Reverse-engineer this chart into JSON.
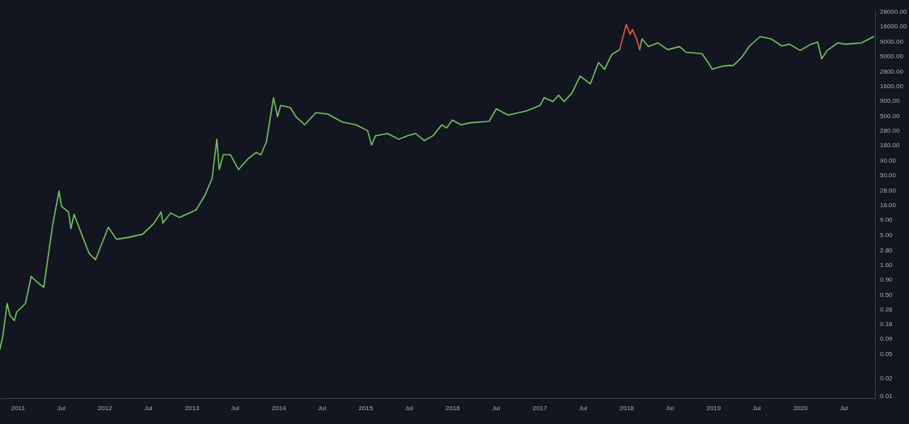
{
  "chart_data": {
    "type": "line",
    "log": "y",
    "grid": false,
    "marker": "none",
    "line_style": "solid",
    "xlim": [
      "2010-10-19",
      "2020-11-11"
    ],
    "ylim": [
      0.009,
      30000
    ],
    "xticks": [
      {
        "value": "2011-01-01",
        "label": "2011"
      },
      {
        "value": "2011-07-01",
        "label": "Jul"
      },
      {
        "value": "2012-01-01",
        "label": "2012"
      },
      {
        "value": "2012-07-01",
        "label": "Jul"
      },
      {
        "value": "2013-01-01",
        "label": "2013"
      },
      {
        "value": "2013-07-01",
        "label": "Jul"
      },
      {
        "value": "2014-01-01",
        "label": "2014"
      },
      {
        "value": "2014-07-01",
        "label": "Jul"
      },
      {
        "value": "2015-01-01",
        "label": "2015"
      },
      {
        "value": "2015-07-01",
        "label": "Jul"
      },
      {
        "value": "2016-01-01",
        "label": "2016"
      },
      {
        "value": "2016-07-01",
        "label": "Jul"
      },
      {
        "value": "2017-01-01",
        "label": "2017"
      },
      {
        "value": "2017-07-01",
        "label": "Jul"
      },
      {
        "value": "2018-01-01",
        "label": "2018"
      },
      {
        "value": "2018-07-01",
        "label": "Jul"
      },
      {
        "value": "2019-01-01",
        "label": "2019"
      },
      {
        "value": "2019-07-01",
        "label": "Jul"
      },
      {
        "value": "2020-01-01",
        "label": "2020"
      },
      {
        "value": "2020-07-01",
        "label": "Jul"
      }
    ],
    "yticks": [
      0.01,
      0.02,
      0.05,
      0.09,
      0.16,
      0.28,
      {
        "value": 0.5,
        "label": "0.50"
      },
      {
        "value": 0.9,
        "label": "0.90"
      },
      {
        "value": 1.6,
        "label": "1.60"
      },
      {
        "value": 2.8,
        "label": "2.80"
      },
      {
        "value": 5,
        "label": "5.00"
      },
      {
        "value": 9,
        "label": "9.00"
      },
      {
        "value": 16,
        "label": "16.00"
      },
      {
        "value": 28,
        "label": "28.00"
      },
      {
        "value": 50,
        "label": "50.00"
      },
      {
        "value": 90,
        "label": "90.00"
      },
      {
        "value": 160,
        "label": "160.00"
      },
      {
        "value": 280,
        "label": "280.00"
      },
      {
        "value": 500,
        "label": "500.00"
      },
      {
        "value": 900,
        "label": "900.00"
      },
      {
        "value": 1600,
        "label": "1600.00"
      },
      {
        "value": 2800,
        "label": "2800.00"
      },
      {
        "value": 5000,
        "label": "5000.00"
      },
      {
        "value": 9000,
        "label": "9000.00"
      },
      {
        "value": 16000,
        "label": "16000.00"
      },
      {
        "value": 28000,
        "label": "28000.00"
      }
    ],
    "series": [
      {
        "color": "#72c05f",
        "x": [
          "2010-10-19",
          "2010-10-31",
          "2010-11-18",
          "2010-11-30",
          "2010-12-18",
          "2010-12-28",
          "2011-02-03",
          "2011-02-27",
          "2011-03-22",
          "2011-04-21",
          "2011-05-11",
          "2011-05-28",
          "2011-06-24",
          "2011-07-04",
          "2011-08-03",
          "2011-08-13",
          "2011-08-26",
          "2011-10-02",
          "2011-10-29",
          "2011-11-24",
          "2011-12-11",
          "2012-01-17",
          "2012-02-20",
          "2012-04-10",
          "2012-06-10",
          "2012-07-27",
          "2012-08-26",
          "2012-09-02",
          "2012-10-05",
          "2012-11-11",
          "2013-01-20",
          "2013-02-26",
          "2013-03-28",
          "2013-04-17",
          "2013-04-27",
          "2013-05-14",
          "2013-06-13",
          "2013-07-17",
          "2013-08-26",
          "2013-09-29",
          "2013-10-19",
          "2013-11-11",
          "2013-12-11",
          "2013-12-28",
          "2014-01-10",
          "2014-02-20",
          "2014-03-15",
          "2014-04-21",
          "2014-06-07",
          "2014-07-27",
          "2014-09-26",
          "2014-11-22",
          "2015-01-10",
          "2015-01-27",
          "2015-02-13",
          "2015-04-04",
          "2015-05-21",
          "2015-06-27",
          "2015-07-31",
          "2015-09-06",
          "2015-10-12",
          "2015-11-18",
          "2015-12-08",
          "2016-01-01",
          "2016-02-07",
          "2016-03-18",
          "2016-06-04",
          "2016-07-04",
          "2016-08-23",
          "2016-11-08",
          "2017-01-04",
          "2017-01-21",
          "2017-02-27",
          "2017-03-22",
          "2017-04-15",
          "2017-05-18",
          "2017-06-21",
          "2017-08-03",
          "2017-09-06",
          "2017-10-02",
          "2017-11-01",
          "2017-12-04",
          null,
          "2018-02-26",
          "2018-03-08",
          "2018-04-04",
          "2018-05-14",
          "2018-06-24",
          "2018-08-13",
          "2018-09-09",
          "2018-11-15",
          "2018-12-11",
          "2018-12-28",
          "2019-02-13",
          "2019-03-28",
          "2019-04-30",
          "2019-06-03",
          "2019-07-17",
          "2019-09-02",
          "2019-10-16",
          "2019-11-18",
          "2020-01-01",
          "2020-02-16",
          "2020-03-15",
          "2020-04-01",
          "2020-04-24",
          "2020-06-07",
          "2020-07-10",
          "2020-09-15",
          "2020-11-05"
        ],
        "values": [
          0.06,
          0.1,
          0.35,
          0.22,
          0.18,
          0.25,
          0.35,
          1.0,
          0.81,
          0.65,
          2.4,
          7.2,
          27,
          15,
          12,
          6.3,
          11,
          4.5,
          2.4,
          1.9,
          2.8,
          6.7,
          4.2,
          4.5,
          5.1,
          7.8,
          12,
          7.8,
          11.6,
          9.7,
          13,
          23,
          44,
          200,
          62,
          110,
          110,
          62,
          94,
          120,
          110,
          180,
          1000,
          480,
          740,
          680,
          480,
          350,
          560,
          530,
          390,
          350,
          280,
          160,
          230,
          250,
          200,
          230,
          250,
          190,
          230,
          350,
          310,
          420,
          350,
          380,
          400,
          650,
          510,
          600,
          740,
          1000,
          860,
          1100,
          860,
          1200,
          2300,
          1700,
          3900,
          3000,
          5300,
          6400,
          null,
          6400,
          9700,
          7200,
          8300,
          6400,
          7200,
          5800,
          5500,
          3900,
          3000,
          3400,
          3500,
          4700,
          7400,
          10600,
          9700,
          7400,
          7900,
          6200,
          7900,
          8600,
          4500,
          6200,
          8300,
          7900,
          8300,
          10600
        ]
      },
      {
        "color": "#e0553f",
        "x": [
          "2017-12-04",
          "2018-01-01",
          "2018-01-17",
          "2018-01-27",
          "2018-02-13",
          "2018-02-26"
        ],
        "values": [
          6400,
          17000,
          11600,
          14000,
          9700,
          6400
        ]
      }
    ]
  }
}
